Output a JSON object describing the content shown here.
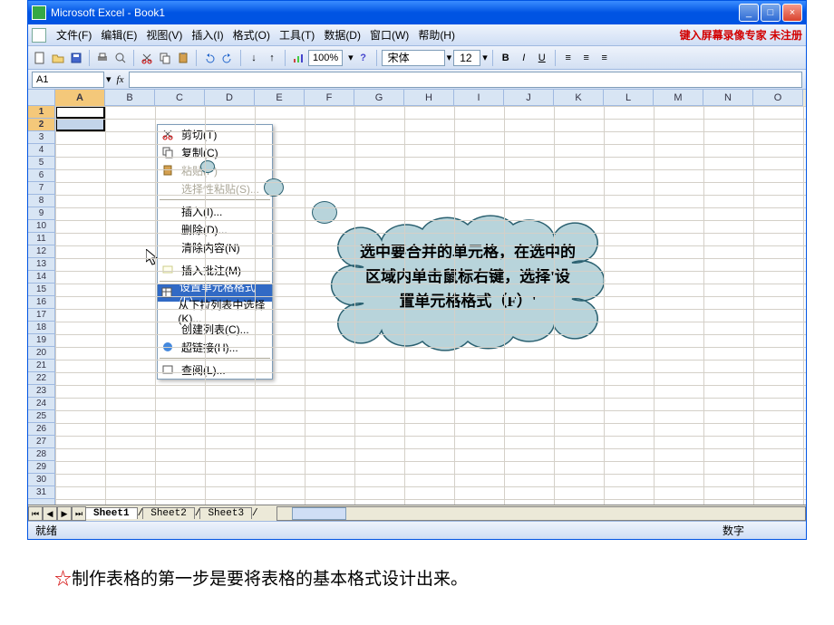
{
  "window": {
    "title": "Microsoft Excel - Book1",
    "min": "_",
    "max": "□",
    "close": "×"
  },
  "menus": [
    "文件(F)",
    "编辑(E)",
    "视图(V)",
    "插入(I)",
    "格式(O)",
    "工具(T)",
    "数据(D)",
    "窗口(W)",
    "帮助(H)"
  ],
  "watermark": "键入屏幕录像专家 未注册",
  "toolbar": {
    "zoom": "100%",
    "font": "宋体",
    "size": "12"
  },
  "namebox": "A1",
  "columns": [
    "A",
    "B",
    "C",
    "D",
    "E",
    "F",
    "G",
    "H",
    "I",
    "J",
    "K",
    "L",
    "M",
    "N",
    "O"
  ],
  "row_count": 31,
  "context_menu": [
    {
      "label": "剪切(T)",
      "icon": "cut",
      "sep": false
    },
    {
      "label": "复制(C)",
      "icon": "copy",
      "sep": false
    },
    {
      "label": "粘贴(P)",
      "icon": "paste",
      "sep": false,
      "disabled": true
    },
    {
      "label": "选择性粘贴(S)...",
      "icon": "",
      "sep": false,
      "disabled": true
    },
    {
      "sep": true
    },
    {
      "label": "插入(I)...",
      "icon": "",
      "sep": false
    },
    {
      "label": "删除(D)...",
      "icon": "",
      "sep": false
    },
    {
      "label": "清除内容(N)",
      "icon": "",
      "sep": false
    },
    {
      "sep": true
    },
    {
      "label": "插入批注(M)",
      "icon": "comment",
      "sep": false
    },
    {
      "sep": true
    },
    {
      "label": "设置单元格格式(F)...",
      "icon": "format",
      "sep": false,
      "hover": true
    },
    {
      "label": "从下拉列表中选择(K)...",
      "icon": "",
      "sep": false
    },
    {
      "label": "创建列表(C)...",
      "icon": "",
      "sep": false
    },
    {
      "label": "超链接(H)...",
      "icon": "link",
      "sep": false
    },
    {
      "sep": true
    },
    {
      "label": "查阅(L)...",
      "icon": "look",
      "sep": false
    }
  ],
  "cloud_text": "选中要合并的单元格，在选中的区域内单击鼠标右键，选择'设置单元格格式（F）'",
  "cloud_fill": "#b8d4db",
  "cloud_stroke": "#2a6070",
  "sheets": [
    "Sheet1",
    "Sheet2",
    "Sheet3"
  ],
  "status": {
    "ready": "就绪",
    "num": "数字"
  },
  "caption": "制作表格的第一步是要将表格的基本格式设计出来。",
  "star": "☆"
}
